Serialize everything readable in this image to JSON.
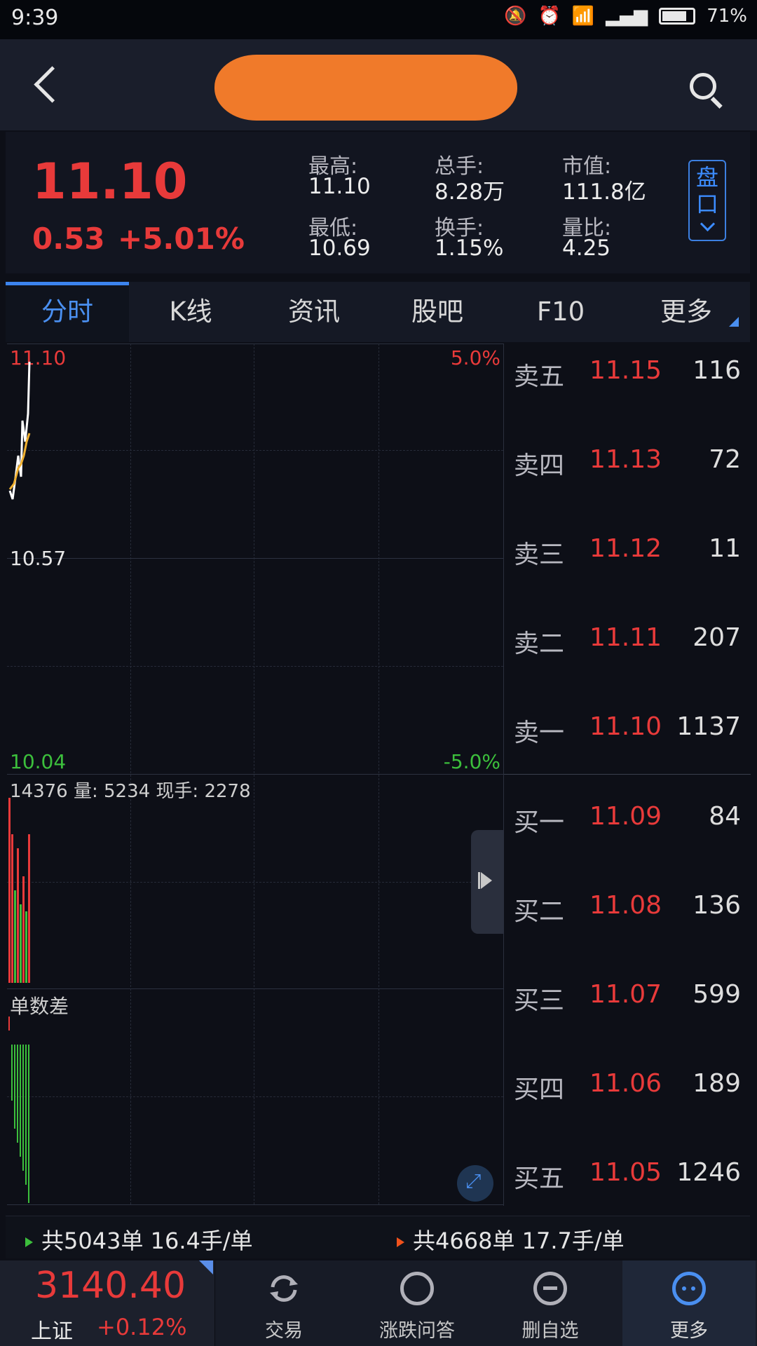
{
  "status_bar": {
    "time": "9:39",
    "battery": "71%"
  },
  "header": {
    "back_icon": "back-arrow-icon",
    "search_icon": "search-icon"
  },
  "quote": {
    "price": "11.10",
    "change": "0.53",
    "change_pct": "+5.01%",
    "stats": [
      {
        "label": "最高:",
        "value": "11.10"
      },
      {
        "label": "总手:",
        "value": "8.28万"
      },
      {
        "label": "市值:",
        "value": "111.8亿"
      },
      {
        "label": "最低:",
        "value": "10.69"
      },
      {
        "label": "换手:",
        "value": "1.15%"
      },
      {
        "label": "量比:",
        "value": "4.25"
      }
    ],
    "pankou_label": "盘口"
  },
  "tabs": [
    "分时",
    "K线",
    "资讯",
    "股吧",
    "F10",
    "更多"
  ],
  "chart": {
    "price_high": "11.10",
    "price_mid": "10.57",
    "price_low": "10.04",
    "pct_high": "5.0%",
    "pct_low": "-5.0%",
    "volume_info": "14376 量: 5234 现手: 2278",
    "diff_label": "单数差",
    "colors": {
      "up": "#e83a3a",
      "down": "#3cbf3c",
      "price_line": "#ffffff",
      "avg_line": "#f0b030"
    }
  },
  "order_book": {
    "sell": [
      {
        "label": "卖五",
        "price": "11.15",
        "volume": "116"
      },
      {
        "label": "卖四",
        "price": "11.13",
        "volume": "72"
      },
      {
        "label": "卖三",
        "price": "11.12",
        "volume": "11"
      },
      {
        "label": "卖二",
        "price": "11.11",
        "volume": "207"
      },
      {
        "label": "卖一",
        "price": "11.10",
        "volume": "1137"
      }
    ],
    "buy": [
      {
        "label": "买一",
        "price": "11.09",
        "volume": "84"
      },
      {
        "label": "买二",
        "price": "11.08",
        "volume": "136"
      },
      {
        "label": "买三",
        "price": "11.07",
        "volume": "599"
      },
      {
        "label": "买四",
        "price": "11.06",
        "volume": "189"
      },
      {
        "label": "买五",
        "price": "11.05",
        "volume": "1246"
      }
    ]
  },
  "order_stats": {
    "left": "共5043单 16.4手/单",
    "right": "共4668单 17.7手/单"
  },
  "bottom_nav": {
    "index_value": "3140.40",
    "index_name": "上证",
    "index_pct": "+0.12%",
    "items": [
      {
        "label": "交易",
        "icon": "trade-refresh-icon"
      },
      {
        "label": "涨跌问答",
        "icon": "qa-chat-icon"
      },
      {
        "label": "删自选",
        "icon": "remove-watchlist-icon"
      },
      {
        "label": "更多",
        "icon": "more-dots-icon"
      }
    ]
  }
}
